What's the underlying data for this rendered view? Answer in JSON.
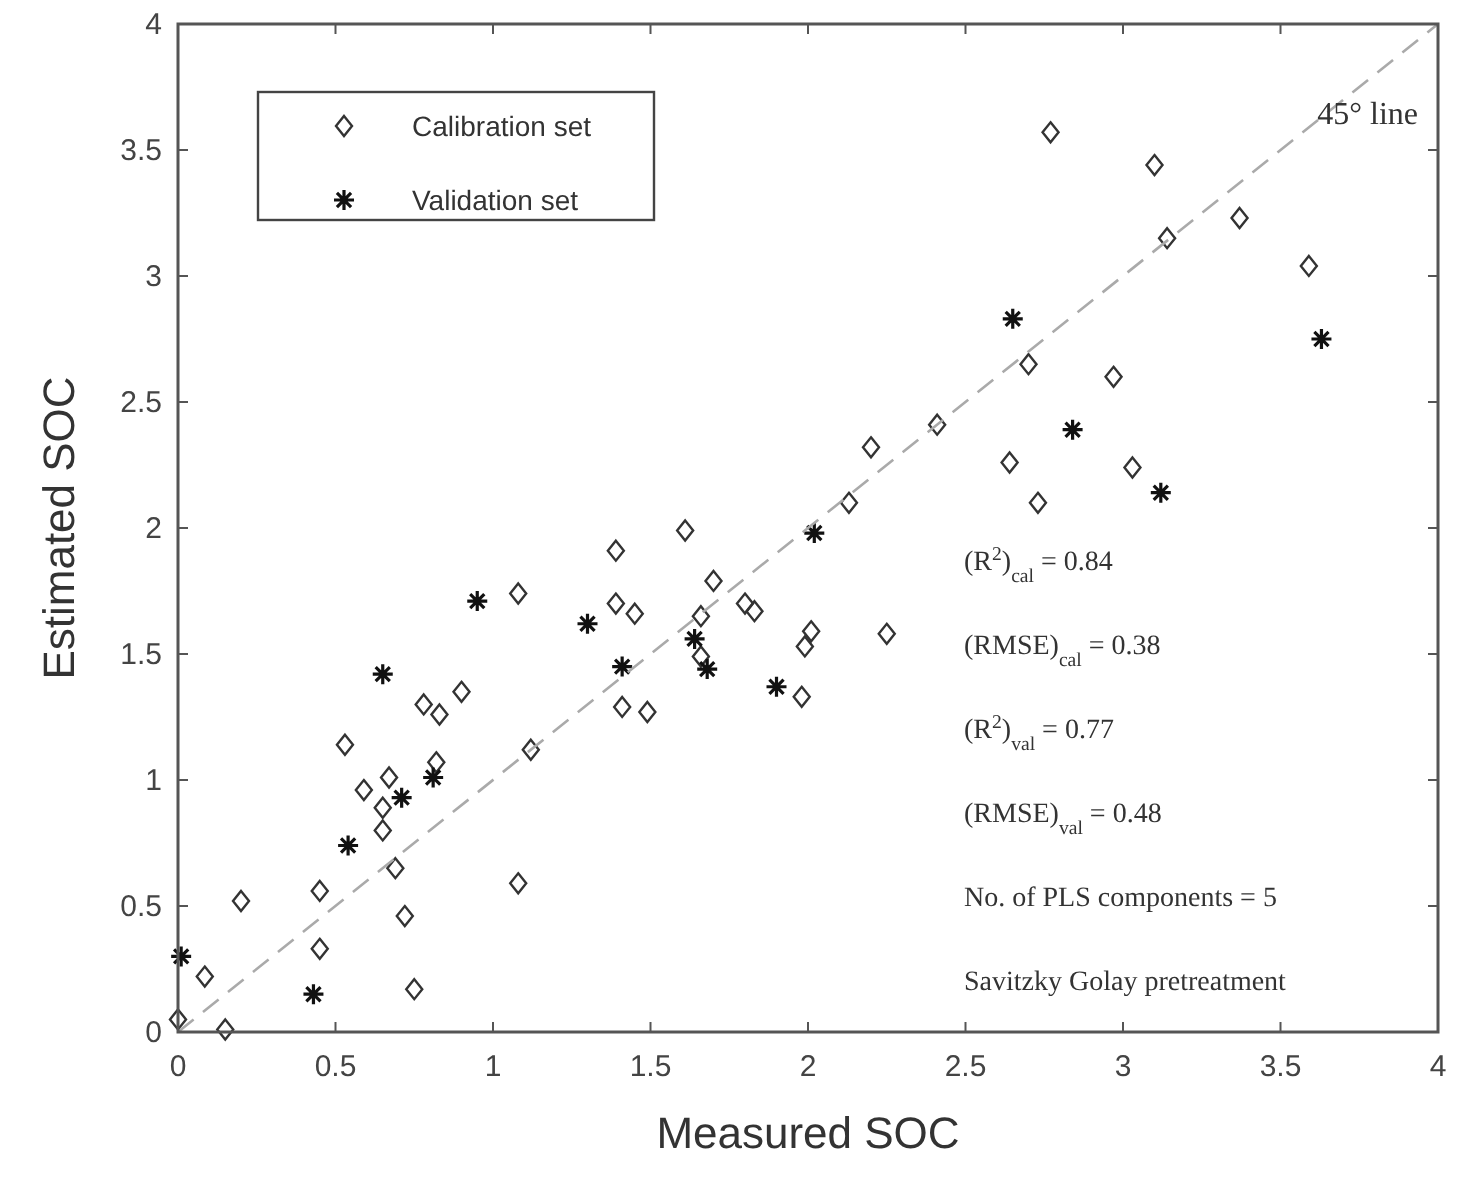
{
  "chart_data": {
    "type": "scatter",
    "xlabel": "Measured SOC",
    "ylabel": "Estimated SOC",
    "xlim": [
      0,
      4
    ],
    "ylim": [
      0,
      4
    ],
    "xticks": [
      0,
      0.5,
      1,
      1.5,
      2,
      2.5,
      3,
      3.5,
      4
    ],
    "yticks": [
      0,
      0.5,
      1,
      1.5,
      2,
      2.5,
      3,
      3.5,
      4
    ],
    "grid": false,
    "legend": "top left",
    "series": [
      {
        "name": "Calibration set",
        "color": "#333333",
        "marker": "diamond",
        "x": [
          0.0,
          0.085,
          0.15,
          0.2,
          0.45,
          0.45,
          0.75,
          0.72,
          0.69,
          0.65,
          0.65,
          0.59,
          0.67,
          0.82,
          0.53,
          0.78,
          0.83,
          0.9,
          1.08,
          1.12,
          1.08,
          1.39,
          1.39,
          1.45,
          1.41,
          1.49,
          1.61,
          1.7,
          1.66,
          1.66,
          1.8,
          1.83,
          1.99,
          2.01,
          1.98,
          2.25,
          2.77,
          3.1,
          3.37,
          3.14,
          3.59,
          2.7,
          2.97,
          2.41,
          2.2,
          2.13,
          2.64,
          3.03,
          2.73
        ],
        "values": [
          0.05,
          0.22,
          0.01,
          0.52,
          0.56,
          0.33,
          0.17,
          0.46,
          0.65,
          0.8,
          0.89,
          0.96,
          1.01,
          1.07,
          1.14,
          1.3,
          1.26,
          1.35,
          0.59,
          1.12,
          1.74,
          1.91,
          1.7,
          1.66,
          1.29,
          1.27,
          1.99,
          1.79,
          1.65,
          1.49,
          1.7,
          1.67,
          1.53,
          1.59,
          1.33,
          1.58,
          3.57,
          3.44,
          3.23,
          3.15,
          3.04,
          2.65,
          2.6,
          2.41,
          2.32,
          2.1,
          2.26,
          2.24,
          2.1
        ]
      },
      {
        "name": "Validation set",
        "color": "#111111",
        "marker": "cross",
        "x": [
          0.01,
          0.43,
          0.54,
          0.65,
          0.71,
          0.81,
          0.95,
          1.3,
          1.41,
          1.64,
          1.68,
          1.9,
          2.02,
          2.65,
          2.84,
          3.12,
          3.63
        ],
        "values": [
          0.3,
          0.15,
          0.74,
          1.42,
          0.93,
          1.01,
          1.71,
          1.62,
          1.45,
          1.56,
          1.44,
          1.37,
          1.98,
          2.83,
          2.39,
          2.14,
          2.75
        ]
      },
      {
        "type": "line",
        "color": "#aaaaaa",
        "marker": "none",
        "line_style": "dashed",
        "x": [
          0,
          4
        ],
        "values": [
          0,
          4
        ]
      }
    ],
    "annotations": [
      "45° line",
      "(R$^{2}$)$_{cal}$ = 0.84",
      "(RMSE)$_{cal}$ = 0.38",
      "(R$^{2}$)$_{val}$ = 0.77",
      "(RMSE)$_{val}$ = 0.48",
      "No. of PLS components = 5",
      "Savitzky Golay pretreatment"
    ]
  }
}
